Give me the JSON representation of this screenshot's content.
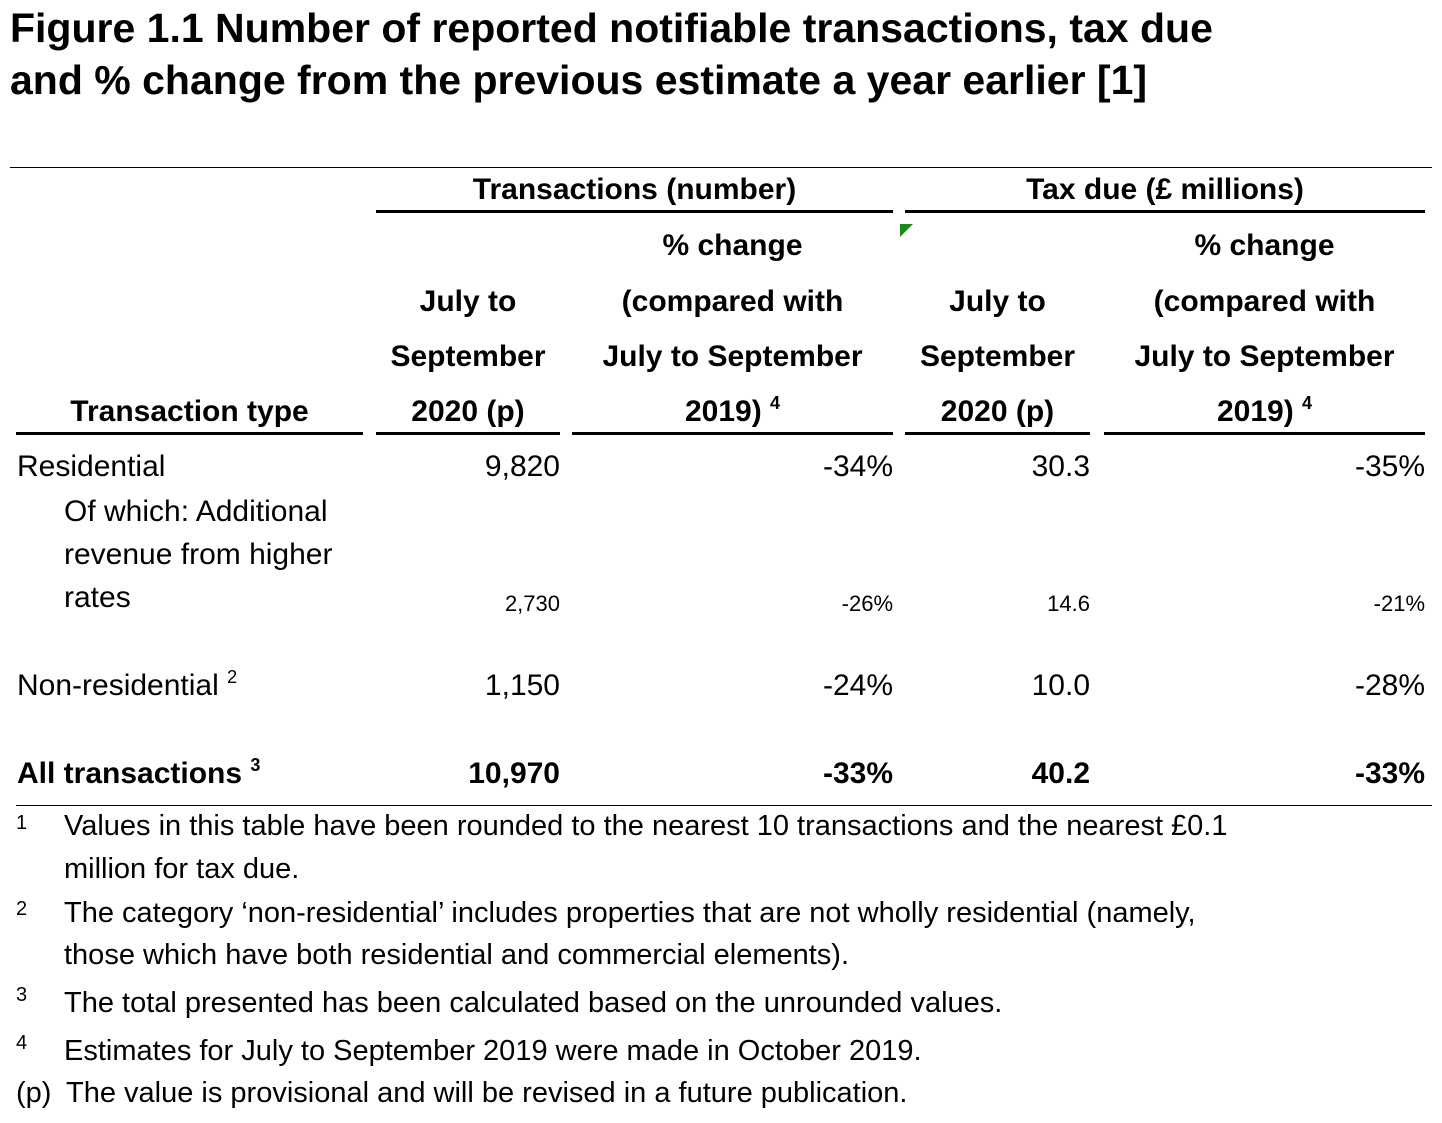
{
  "title": {
    "line1": "Figure 1.1  Number of reported notifiable transactions, tax due",
    "line2": "and % change from the previous estimate a year earlier [1]"
  },
  "groups": {
    "transactions": "Transactions (number)",
    "tax": "Tax due (£ millions)"
  },
  "headers": {
    "type": "Transaction type",
    "period": [
      "July to",
      "September",
      "2020 (p)"
    ],
    "change": [
      "% change",
      "(compared with",
      "July to September",
      "2019)"
    ],
    "change_note": "4"
  },
  "rows": [
    {
      "label": "Residential",
      "note": "",
      "values": [
        "9,820",
        "-34%",
        "30.3",
        "-35%"
      ]
    },
    {
      "label_lines": [
        "Of which: Additional",
        "revenue from higher",
        "rates"
      ],
      "values": [
        "2,730",
        "-26%",
        "14.6",
        "-21%"
      ]
    },
    {
      "label": "Non-residential",
      "note": "2",
      "values": [
        "1,150",
        "-24%",
        "10.0",
        "-28%"
      ]
    },
    {
      "label": "All transactions",
      "note": "3",
      "values": [
        "10,970",
        "-33%",
        "40.2",
        "-33%"
      ]
    }
  ],
  "footnotes": [
    {
      "num": "1",
      "lines": [
        "Values in this table have been rounded to the nearest 10 transactions and the nearest £0.1",
        "million for tax due."
      ]
    },
    {
      "num": "2",
      "lines": [
        "The category ‘non-residential’ includes properties that are not wholly residential (namely,",
        "those which have both residential and commercial elements)."
      ]
    },
    {
      "num": "3",
      "lines": [
        "The total presented has been calculated based on the unrounded values."
      ]
    },
    {
      "num": "4",
      "lines": [
        "Estimates for July to September 2019 were made in October 2019."
      ]
    },
    {
      "num": "(p)",
      "lines": [
        "The value is provisional and will be revised in a future publication."
      ]
    }
  ]
}
